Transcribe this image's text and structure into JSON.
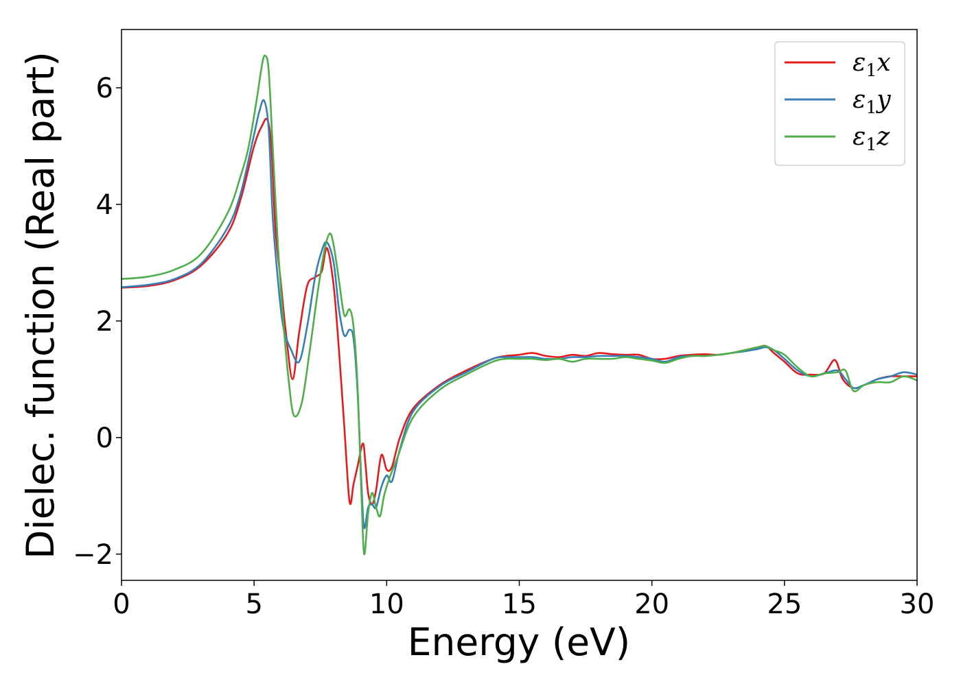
{
  "chart_data": {
    "type": "line",
    "title": "",
    "xlabel": "Energy (eV)",
    "ylabel": "Dielec. function (Real part)",
    "xlim": [
      0,
      30
    ],
    "ylim": [
      -2.45,
      7.0
    ],
    "xticks": [
      0,
      5,
      10,
      15,
      20,
      25,
      30
    ],
    "xtick_labels": [
      "0",
      "5",
      "10",
      "15",
      "20",
      "25",
      "30"
    ],
    "yticks": [
      -2,
      0,
      2,
      4,
      6
    ],
    "ytick_labels": [
      "−2",
      "0",
      "2",
      "4",
      "6"
    ],
    "grid": false,
    "legend_position": "top-right",
    "series": [
      {
        "name": "ε₁x",
        "symbol": "ε",
        "sub": "1",
        "suffix": "x",
        "color": "#e41a1c",
        "x": [
          0,
          1,
          2,
          3,
          4,
          4.5,
          5,
          5.3,
          5.5,
          5.65,
          5.8,
          6.0,
          6.2,
          6.45,
          6.7,
          7.0,
          7.3,
          7.55,
          7.75,
          8.0,
          8.2,
          8.4,
          8.6,
          8.75,
          8.9,
          9.1,
          9.2,
          9.3,
          9.45,
          9.6,
          9.8,
          10.0,
          10.2,
          10.5,
          11,
          12,
          13,
          14,
          14.5,
          15,
          15.5,
          16,
          16.5,
          17,
          17.5,
          18,
          18.5,
          19,
          19.5,
          20,
          20.5,
          21,
          21.5,
          22,
          22.5,
          23,
          23.5,
          24,
          24.3,
          24.6,
          25,
          25.5,
          26,
          26.5,
          26.9,
          27.2,
          27.6,
          28,
          28.5,
          29,
          29.5,
          30
        ],
        "y": [
          2.57,
          2.6,
          2.7,
          2.95,
          3.5,
          4.1,
          5.0,
          5.35,
          5.45,
          5.0,
          3.6,
          2.7,
          1.8,
          1.0,
          1.8,
          2.6,
          2.75,
          2.85,
          3.25,
          2.6,
          1.5,
          0.2,
          -1.1,
          -0.8,
          -0.5,
          -0.1,
          -0.45,
          -0.95,
          -1.15,
          -0.9,
          -0.3,
          -0.55,
          -0.5,
          0.0,
          0.5,
          0.9,
          1.15,
          1.35,
          1.4,
          1.42,
          1.45,
          1.4,
          1.38,
          1.42,
          1.4,
          1.45,
          1.43,
          1.42,
          1.42,
          1.35,
          1.35,
          1.4,
          1.42,
          1.43,
          1.42,
          1.45,
          1.5,
          1.55,
          1.57,
          1.45,
          1.3,
          1.1,
          1.08,
          1.1,
          1.33,
          1.0,
          0.85,
          0.9,
          1.0,
          1.05,
          1.05,
          1.05
        ]
      },
      {
        "name": "ε₁y",
        "symbol": "ε",
        "sub": "1",
        "suffix": "y",
        "color": "#377eb8",
        "x": [
          0,
          1,
          2,
          3,
          4,
          4.5,
          5,
          5.2,
          5.38,
          5.55,
          5.7,
          5.9,
          6.1,
          6.4,
          6.7,
          7.0,
          7.3,
          7.55,
          7.75,
          8.0,
          8.2,
          8.4,
          8.6,
          8.75,
          8.9,
          9.05,
          9.15,
          9.3,
          9.45,
          9.6,
          9.8,
          10.0,
          10.2,
          10.5,
          11,
          12,
          13,
          14,
          14.5,
          15,
          15.5,
          16,
          16.5,
          17,
          17.5,
          18,
          18.5,
          19,
          19.5,
          20,
          20.5,
          21,
          21.5,
          22,
          22.5,
          23,
          23.5,
          24,
          24.3,
          24.6,
          25,
          25.5,
          26,
          26.5,
          27,
          27.3,
          27.6,
          28,
          28.5,
          29,
          29.5,
          30
        ],
        "y": [
          2.58,
          2.62,
          2.72,
          2.98,
          3.6,
          4.2,
          5.2,
          5.6,
          5.78,
          5.3,
          3.8,
          2.7,
          1.9,
          1.5,
          1.3,
          1.9,
          2.75,
          3.2,
          3.35,
          3.0,
          2.2,
          1.75,
          1.85,
          1.7,
          0.8,
          -0.8,
          -1.55,
          -1.2,
          -1.15,
          -1.2,
          -0.85,
          -0.65,
          -0.75,
          -0.2,
          0.45,
          0.88,
          1.12,
          1.35,
          1.38,
          1.38,
          1.38,
          1.35,
          1.35,
          1.38,
          1.38,
          1.4,
          1.4,
          1.4,
          1.38,
          1.35,
          1.3,
          1.38,
          1.4,
          1.4,
          1.42,
          1.45,
          1.48,
          1.52,
          1.55,
          1.5,
          1.35,
          1.15,
          1.05,
          1.1,
          1.15,
          1.0,
          0.85,
          0.9,
          1.0,
          1.05,
          1.12,
          1.08
        ]
      },
      {
        "name": "ε₁z",
        "symbol": "ε",
        "sub": "1",
        "suffix": "z",
        "color": "#4daf4a",
        "x": [
          0,
          1,
          2,
          3,
          4,
          4.5,
          4.8,
          5.1,
          5.3,
          5.42,
          5.55,
          5.7,
          5.9,
          6.1,
          6.3,
          6.5,
          6.8,
          7.1,
          7.4,
          7.65,
          7.85,
          8.0,
          8.2,
          8.4,
          8.6,
          8.75,
          8.9,
          9.05,
          9.15,
          9.3,
          9.45,
          9.6,
          9.75,
          9.9,
          10.1,
          10.4,
          11,
          12,
          13,
          14,
          14.5,
          15,
          15.5,
          16,
          16.5,
          17,
          17.5,
          18,
          18.5,
          19,
          19.5,
          20,
          20.5,
          21,
          21.5,
          22,
          22.5,
          23,
          23.5,
          24,
          24.3,
          24.6,
          25,
          25.5,
          26,
          26.5,
          27,
          27.3,
          27.6,
          28,
          28.5,
          29,
          29.5,
          30
        ],
        "y": [
          2.72,
          2.76,
          2.88,
          3.15,
          3.85,
          4.5,
          5.0,
          5.8,
          6.4,
          6.55,
          6.3,
          5.0,
          3.3,
          2.0,
          1.0,
          0.38,
          0.6,
          1.5,
          2.5,
          3.2,
          3.5,
          3.3,
          2.7,
          2.1,
          2.2,
          1.9,
          0.9,
          -1.0,
          -2.0,
          -1.3,
          -0.95,
          -1.2,
          -1.35,
          -1.0,
          -0.7,
          -0.35,
          0.35,
          0.82,
          1.08,
          1.3,
          1.35,
          1.35,
          1.35,
          1.33,
          1.35,
          1.3,
          1.35,
          1.35,
          1.35,
          1.38,
          1.35,
          1.32,
          1.28,
          1.35,
          1.4,
          1.4,
          1.42,
          1.45,
          1.5,
          1.55,
          1.57,
          1.5,
          1.42,
          1.2,
          1.05,
          1.1,
          1.12,
          1.15,
          0.8,
          0.9,
          0.95,
          0.95,
          1.05,
          0.98
        ]
      }
    ]
  }
}
